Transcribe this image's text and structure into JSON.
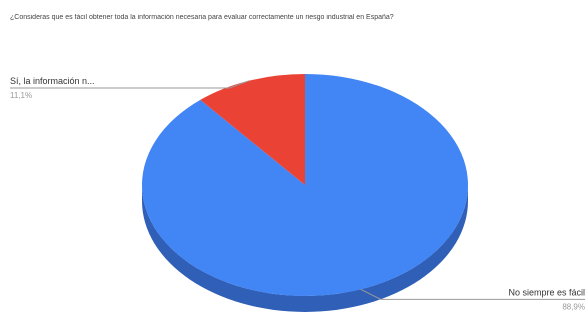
{
  "chart_data": {
    "type": "pie",
    "title": "¿Consideras que es fácil obtener toda la información necesaria para evaluar correctamente un riesgo industrial en España?",
    "three_d": true,
    "slices": [
      {
        "label": "No siempre es fácil",
        "pct_label": "88,9%",
        "value": 88.9,
        "color": "#4285f4",
        "side_color": "#2f5fb6"
      },
      {
        "label": "Sí, la información n...",
        "pct_label": "11,1%",
        "value": 11.1,
        "color": "#ea4335",
        "side_color": "#b33126"
      }
    ]
  }
}
